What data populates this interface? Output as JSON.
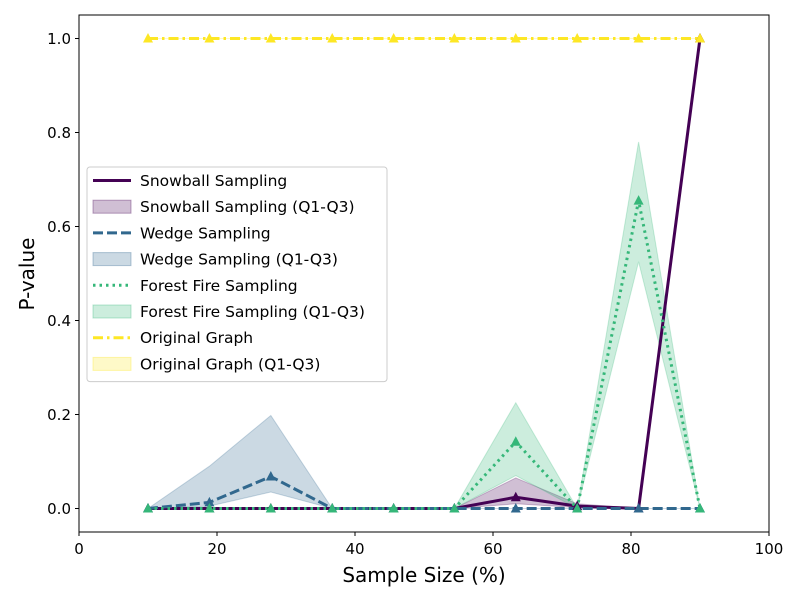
{
  "chart_data": {
    "type": "line",
    "title": "",
    "xlabel": "Sample Size (%)",
    "ylabel": "P-value",
    "xlim": [
      0,
      100
    ],
    "ylim": [
      -0.05,
      1.05
    ],
    "xticks": [
      0,
      20,
      40,
      60,
      80,
      100
    ],
    "xtick_labels": [
      "0",
      "20",
      "40",
      "60",
      "80",
      "100"
    ],
    "yticks": [
      0.0,
      0.2,
      0.4,
      0.6,
      0.8,
      1.0
    ],
    "ytick_labels": [
      "0.0",
      "0.2",
      "0.4",
      "0.6",
      "0.8",
      "1.0"
    ],
    "grid": false,
    "legend_position": "center-left",
    "x": [
      10,
      18.9,
      27.8,
      36.7,
      45.6,
      54.4,
      63.3,
      72.2,
      81.1,
      90
    ],
    "series": [
      {
        "name": "Snowball Sampling",
        "band_name": "Snowball Sampling (Q1-Q3)",
        "color": "#440154",
        "dash": "solid",
        "values": [
          0,
          0,
          0,
          0,
          0,
          0,
          0.024,
          0.005,
          0,
          1.0
        ],
        "q1": [
          0,
          0,
          0,
          0,
          0,
          0,
          0.01,
          0.002,
          0,
          1.0
        ],
        "q3": [
          0,
          0,
          0,
          0,
          0,
          0,
          0.065,
          0.01,
          0,
          1.0
        ]
      },
      {
        "name": "Wedge Sampling",
        "band_name": "Wedge Sampling (Q1-Q3)",
        "color": "#31688e",
        "dash": "dashed",
        "values": [
          0,
          0.013,
          0.068,
          0,
          0,
          0,
          0,
          0,
          0,
          0
        ],
        "q1": [
          0,
          0.005,
          0.035,
          0,
          0,
          0,
          0,
          0,
          0,
          0
        ],
        "q3": [
          0,
          0.09,
          0.198,
          0,
          0,
          0,
          0,
          0,
          0,
          0
        ]
      },
      {
        "name": "Forest Fire Sampling",
        "band_name": "Forest Fire Sampling (Q1-Q3)",
        "color": "#35b779",
        "dash": "dotted",
        "values": [
          0,
          0,
          0,
          0,
          0,
          0,
          0.142,
          0,
          0.655,
          0
        ],
        "q1": [
          0,
          0,
          0,
          0,
          0,
          0,
          0.07,
          0,
          0.525,
          0
        ],
        "q3": [
          0,
          0,
          0,
          0,
          0,
          0,
          0.225,
          0,
          0.78,
          0
        ]
      },
      {
        "name": "Original Graph",
        "band_name": "Original Graph (Q1-Q3)",
        "color": "#fde725",
        "dash": "dashdot",
        "values": [
          1,
          1,
          1,
          1,
          1,
          1,
          1,
          1,
          1,
          1
        ],
        "q1": [
          1,
          1,
          1,
          1,
          1,
          1,
          1,
          1,
          1,
          1
        ],
        "q3": [
          1,
          1,
          1,
          1,
          1,
          1,
          1,
          1,
          1,
          1
        ]
      }
    ]
  }
}
